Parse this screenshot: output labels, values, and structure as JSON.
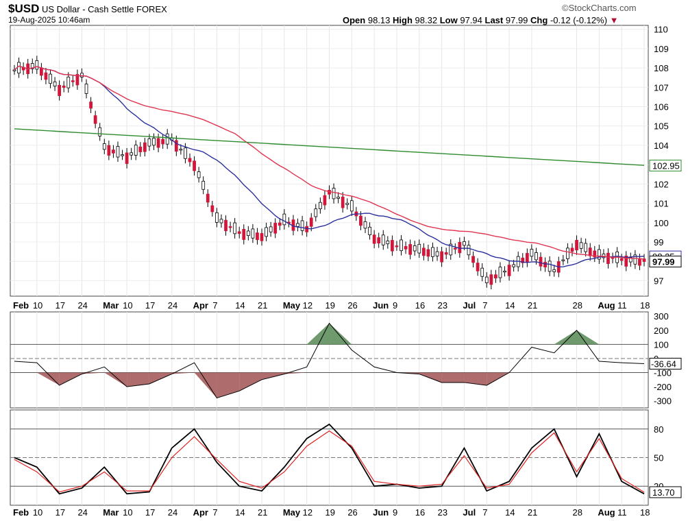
{
  "header": {
    "symbol": "$USD",
    "name": "US Dollar - Cash Settle",
    "exchange": "FOREX",
    "timestamp": "19-Aug-2025 10:46am",
    "source": "©StockCharts.com",
    "quote": {
      "open_label": "Open",
      "open": "98.13",
      "high_label": "High",
      "high": "98.32",
      "low_label": "Low",
      "low": "97.94",
      "last_label": "Last",
      "last": "97.99",
      "chg_label": "Chg",
      "chg": "-0.12 (-0.12%)",
      "down_arrow": "▼"
    }
  },
  "colors": {
    "up": "#ffffff",
    "down": "#d1163a",
    "ma_fast": "#2b2f9e",
    "ma_mid": "#e0344f",
    "ma_slow": "#2e8b2e",
    "stoch_k": "#000000",
    "stoch_d": "#e02020",
    "cci_pos": "#5e8f5e",
    "cci_neg": "#a55c5c"
  },
  "chart_data": [
    {
      "type": "candlestick",
      "panel": "price",
      "x": [
        "Feb 03",
        "Feb 10",
        "Feb 17",
        "Feb 24",
        "Mar 03",
        "Mar 10",
        "Mar 17",
        "Mar 24",
        "Mar 31",
        "Apr 07",
        "Apr 14",
        "Apr 21",
        "Apr 28",
        "May 05",
        "May 12",
        "May 19",
        "May 26",
        "Jun 02",
        "Jun 09",
        "Jun 16",
        "Jun 23",
        "Jun 30",
        "Jul 07",
        "Jul 14",
        "Jul 21",
        "Jul 28",
        "Aug 04",
        "Aug 11",
        "Aug 18"
      ],
      "close": [
        107.9,
        108.1,
        106.9,
        107.6,
        103.9,
        103.4,
        104.1,
        104.3,
        103.0,
        100.2,
        99.5,
        99.3,
        100.1,
        99.7,
        101.6,
        100.8,
        99.2,
        98.8,
        98.6,
        98.3,
        98.9,
        97.0,
        97.6,
        98.4,
        97.5,
        98.9,
        98.3,
        98.1,
        97.99
      ],
      "ylim": [
        96.2,
        110.2
      ],
      "yticks": [
        97,
        98,
        99,
        100,
        101,
        102,
        103,
        104,
        105,
        106,
        107,
        108,
        109,
        110
      ],
      "series": [
        {
          "name": "MA fast"
        },
        {
          "name": "MA mid"
        },
        {
          "name": "MA slow"
        }
      ],
      "labels": {
        "last_close": "97.99",
        "slow_ma": "102.95",
        "fast_ma": "98.25"
      }
    },
    {
      "type": "line",
      "panel": "cci",
      "values": [
        -20,
        -30,
        -190,
        -110,
        -60,
        -200,
        -180,
        -110,
        -30,
        -280,
        -230,
        -150,
        -110,
        -60,
        250,
        60,
        -60,
        -100,
        -110,
        -170,
        -170,
        -190,
        -100,
        80,
        40,
        200,
        -20,
        -30,
        -36.64
      ],
      "ylim": [
        -350,
        330
      ],
      "yticks": [
        300,
        200,
        100,
        0,
        -100,
        -200,
        -300
      ],
      "last_label": "-36.64"
    },
    {
      "type": "line",
      "panel": "stochastic",
      "series": [
        {
          "values": [
            50,
            40,
            12,
            18,
            40,
            12,
            14,
            60,
            80,
            45,
            20,
            15,
            40,
            70,
            85,
            60,
            20,
            22,
            18,
            20,
            60,
            15,
            25,
            60,
            80,
            30,
            75,
            25,
            12
          ]
        },
        {
          "values": [
            48,
            35,
            14,
            20,
            35,
            15,
            15,
            50,
            72,
            48,
            25,
            18,
            35,
            62,
            78,
            62,
            25,
            22,
            20,
            22,
            52,
            18,
            22,
            55,
            76,
            35,
            70,
            28,
            13.7
          ]
        }
      ],
      "ylim": [
        0,
        100
      ],
      "yticks": [
        80,
        50,
        20
      ],
      "last_label": "13.70"
    }
  ],
  "axis": {
    "date_labels": [
      "Feb",
      "10",
      "17",
      "24",
      "Mar",
      "10",
      "17",
      "24",
      "Apr",
      "7",
      "14",
      "21",
      "May",
      "12",
      "19",
      "26",
      "Jun",
      "9",
      "16",
      "23",
      "Jul",
      "7",
      "14",
      "21",
      "28",
      "Aug",
      "11",
      "18"
    ]
  }
}
